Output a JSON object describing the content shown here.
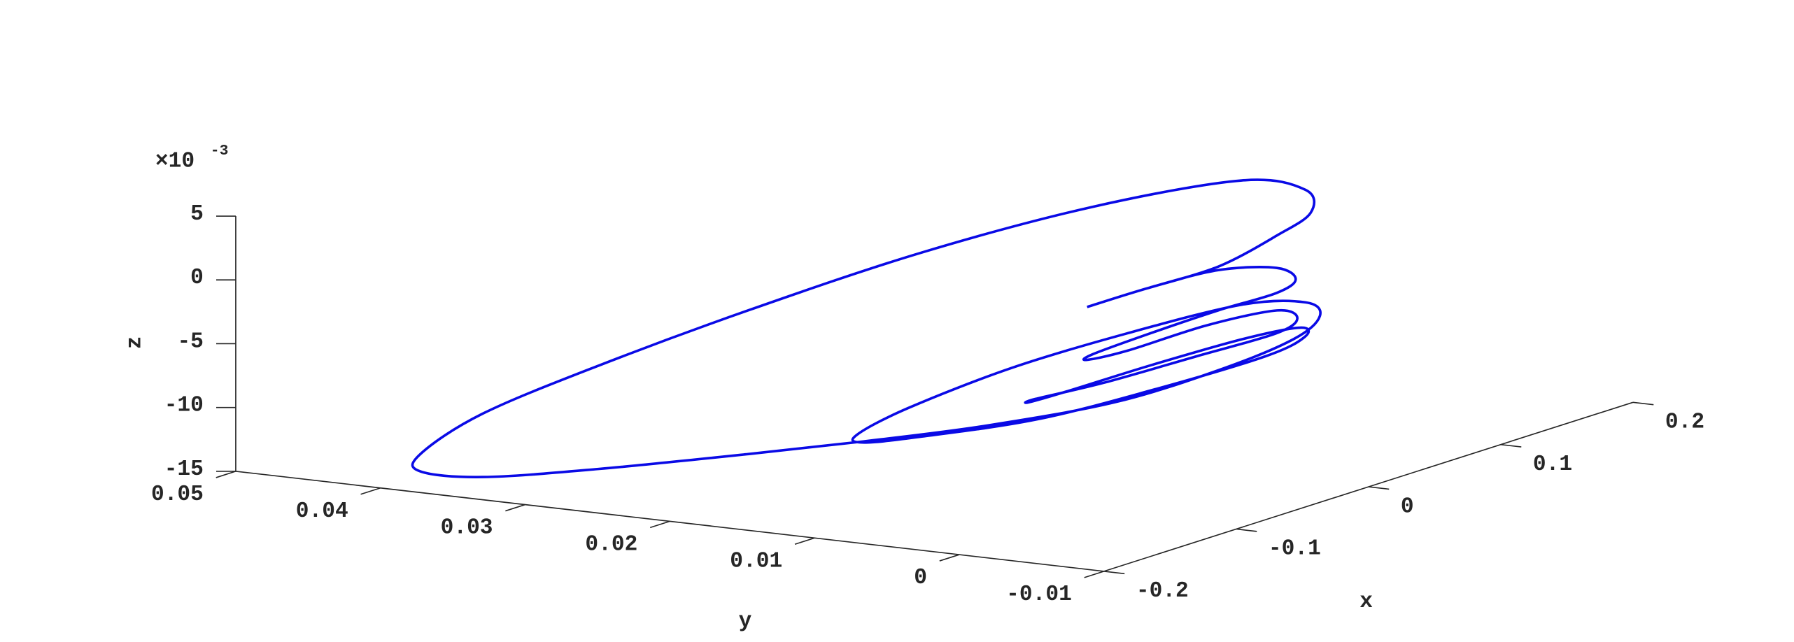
{
  "chart_data": {
    "type": "line3d",
    "color": "#0a0ae6",
    "x": [
      0.0345,
      0.0812,
      0.125,
      0.1405,
      0.1244,
      0.0966,
      0.055,
      0.0012,
      -0.0463,
      -0.0575,
      -0.0334,
      0.0267,
      0.0666,
      0.0567,
      0.0266,
      -0.0296,
      -0.094,
      -0.1358,
      -0.143,
      -0.1149,
      -0.0548,
      0.0096,
      0.0412,
      0.0263,
      -0.0158,
      -0.0988,
      -0.1718,
      -0.1805,
      -0.1576,
      -0.1448,
      -0.1106,
      -0.042,
      0.0188,
      0.0696,
      0.0641,
      0.0431,
      0.02,
      -0.0268,
      -0.0813,
      -0.1023,
      -0.1291,
      -0.1562,
      -0.1678,
      -0.1826,
      -0.1853,
      -0.1775,
      -0.1393,
      -0.0766,
      -0.0172,
      0.0507,
      0.0987,
      0.1524,
      0.1491,
      0.1325,
      0.1078,
      0.0866,
      0.0812
    ],
    "y": [
      0.0126,
      0.0125,
      0.0118,
      0.0092,
      0.0064,
      0.0052,
      0.0054,
      0.0052,
      0.0048,
      0.0042,
      0.0036,
      0.0036,
      0.0024,
      0.0001,
      -0.0012,
      -0.0008,
      -0.0003,
      0.0006,
      0.0004,
      0.0002,
      0.0001,
      -0.0004,
      -0.0015,
      -0.0032,
      -0.0043,
      -0.0039,
      -0.0027,
      0.0045,
      0.0106,
      0.0121,
      0.0117,
      0.0108,
      0.0084,
      0.0051,
      0.0002,
      -0.0027,
      -0.003,
      -0.0021,
      0.0001,
      0.0069,
      0.0124,
      0.0186,
      0.0279,
      0.0345,
      0.0386,
      0.0393,
      0.0385,
      0.0362,
      0.0313,
      0.0256,
      0.0181,
      0.0127,
      0.008,
      0.0061,
      0.0062,
      0.0083,
      0.0125
    ],
    "z": [
      -0.005,
      -0.005,
      -0.005,
      -0.005,
      -0.005,
      -0.005,
      -0.005,
      -0.005,
      -0.005,
      -0.005,
      -0.005,
      -0.005,
      -0.005,
      -0.005,
      -0.005,
      -0.005,
      -0.005,
      -0.005,
      -0.005,
      -0.005,
      -0.005,
      -0.005,
      -0.005,
      -0.005,
      -0.005,
      -0.005,
      -0.005,
      -0.007,
      -0.009,
      -0.009,
      -0.008,
      -0.007,
      -0.006,
      -0.005,
      -0.004,
      -0.004,
      -0.005,
      -0.006,
      -0.007,
      -0.009,
      -0.01,
      -0.011,
      -0.013,
      -0.014,
      -0.014,
      -0.013,
      -0.011,
      -0.009,
      -0.006,
      -0.003,
      0,
      0.001,
      0.001,
      0,
      -0.001,
      -0.003,
      -0.005
    ],
    "xlim": [
      -0.2,
      0.2
    ],
    "ylim": [
      -0.01,
      0.05
    ],
    "zlim": [
      -0.015,
      0.005
    ],
    "xticks": [
      -0.2,
      -0.1,
      0,
      0.1,
      0.2
    ],
    "yticks": [
      -0.01,
      0,
      0.01,
      0.02,
      0.03,
      0.04,
      0.05
    ],
    "zticks": [
      {
        "value": -0.015,
        "label": "-15"
      },
      {
        "value": -0.01,
        "label": "-10"
      },
      {
        "value": -0.005,
        "label": "-5"
      },
      {
        "value": 0,
        "label": "0"
      },
      {
        "value": 0.005,
        "label": "5"
      }
    ],
    "z_exponent": {
      "base": "×10",
      "power": "-3"
    },
    "xlabel": "x",
    "ylabel": "y",
    "zlabel": "z"
  }
}
